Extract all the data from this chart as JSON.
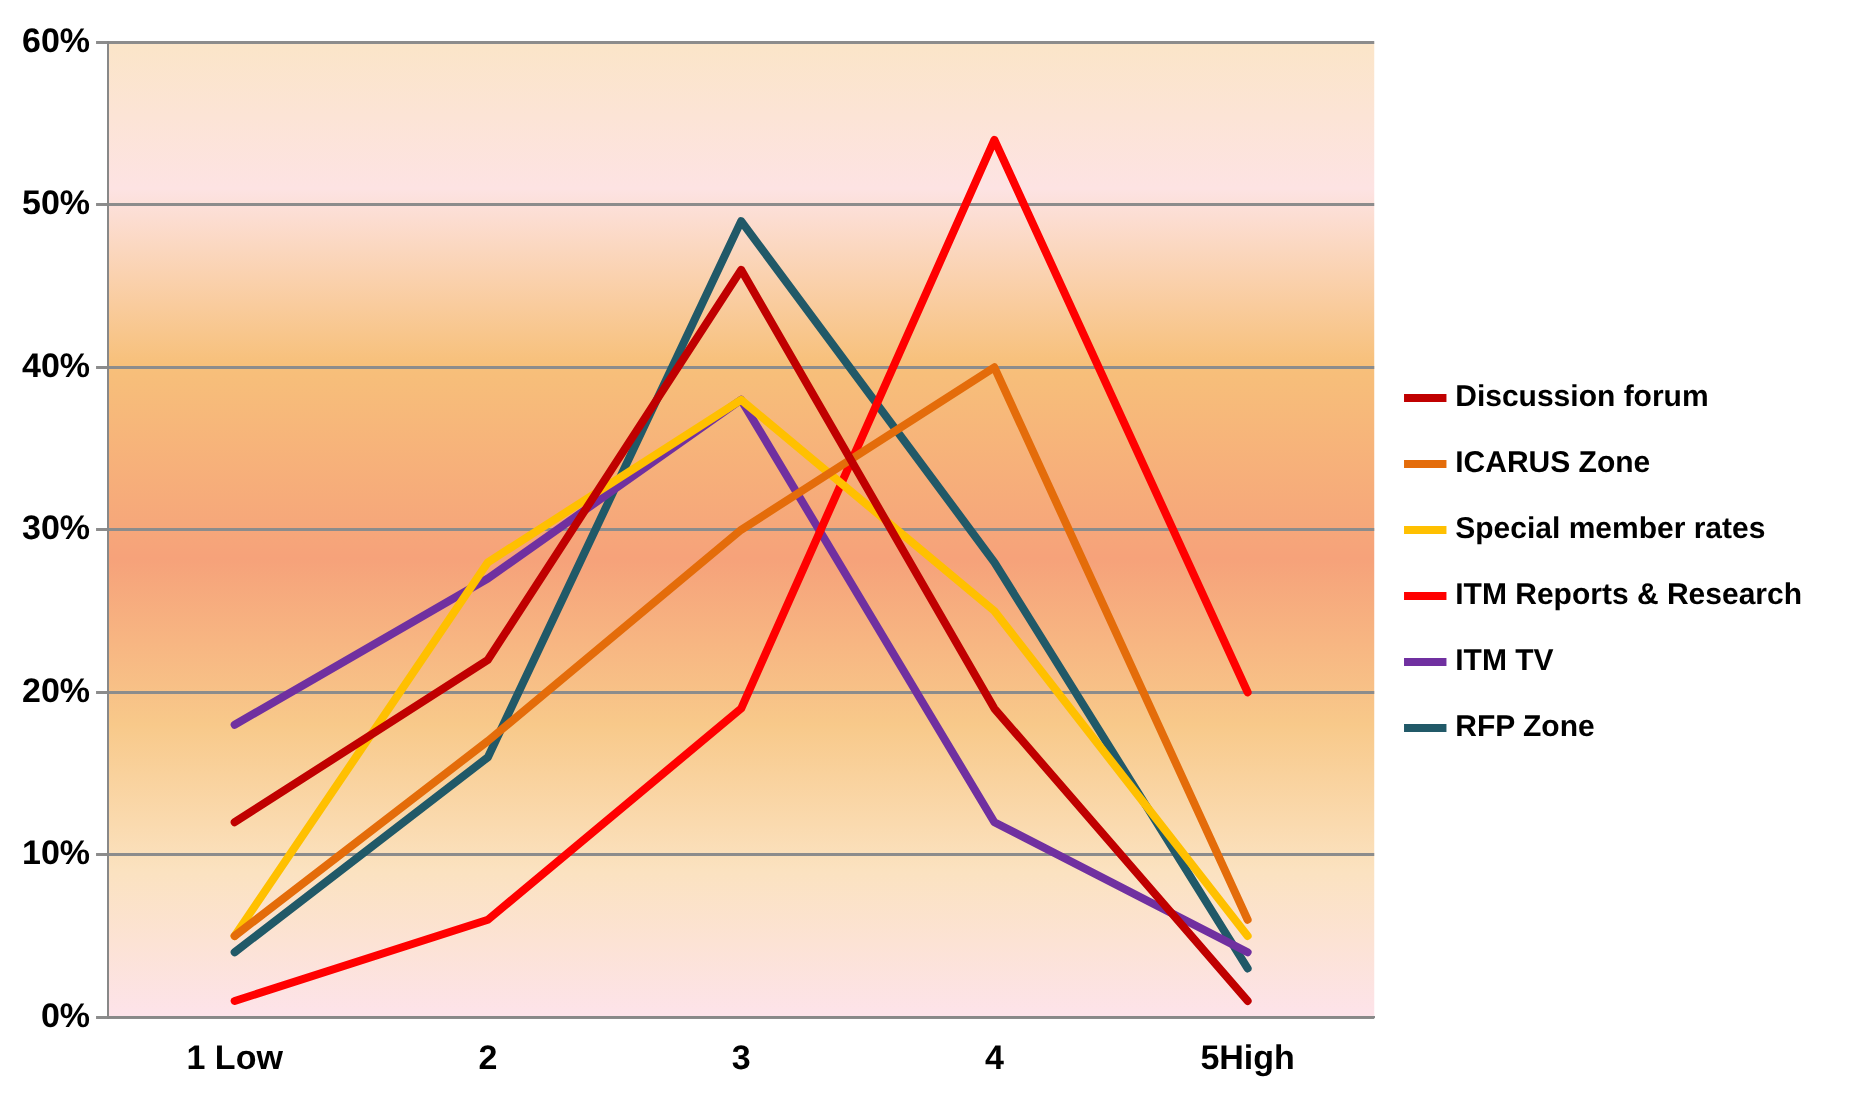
{
  "chart_data": {
    "type": "line",
    "categories": [
      "1 Low",
      "2",
      "3",
      "4",
      "5High"
    ],
    "ylim": [
      0,
      60
    ],
    "yticks": [
      {
        "value": 0,
        "label": "0%"
      },
      {
        "value": 10,
        "label": "10%"
      },
      {
        "value": 20,
        "label": "20%"
      },
      {
        "value": 30,
        "label": "30%"
      },
      {
        "value": 40,
        "label": "40%"
      },
      {
        "value": 50,
        "label": "50%"
      },
      {
        "value": 60,
        "label": "60%"
      }
    ],
    "grid": "y",
    "legend": "right",
    "marker": "none",
    "line_style": "solid",
    "series": [
      {
        "name": "Discussion forum",
        "color": "#c00000",
        "values": [
          12,
          22,
          46,
          19,
          1
        ]
      },
      {
        "name": "ICARUS Zone",
        "color": "#e46c0a",
        "values": [
          5,
          17,
          30,
          40,
          6
        ]
      },
      {
        "name": "Special member rates",
        "color": "#ffc000",
        "values": [
          5,
          28,
          38,
          25,
          5
        ]
      },
      {
        "name": "ITM Reports & Research",
        "color": "#ff0000",
        "values": [
          1,
          6,
          19,
          54,
          20
        ]
      },
      {
        "name": "ITM TV",
        "color": "#7030a0",
        "values": [
          18,
          27,
          38,
          12,
          4
        ]
      },
      {
        "name": "RFP Zone",
        "color": "#215968",
        "values": [
          4,
          16,
          49,
          28,
          3
        ]
      }
    ]
  }
}
